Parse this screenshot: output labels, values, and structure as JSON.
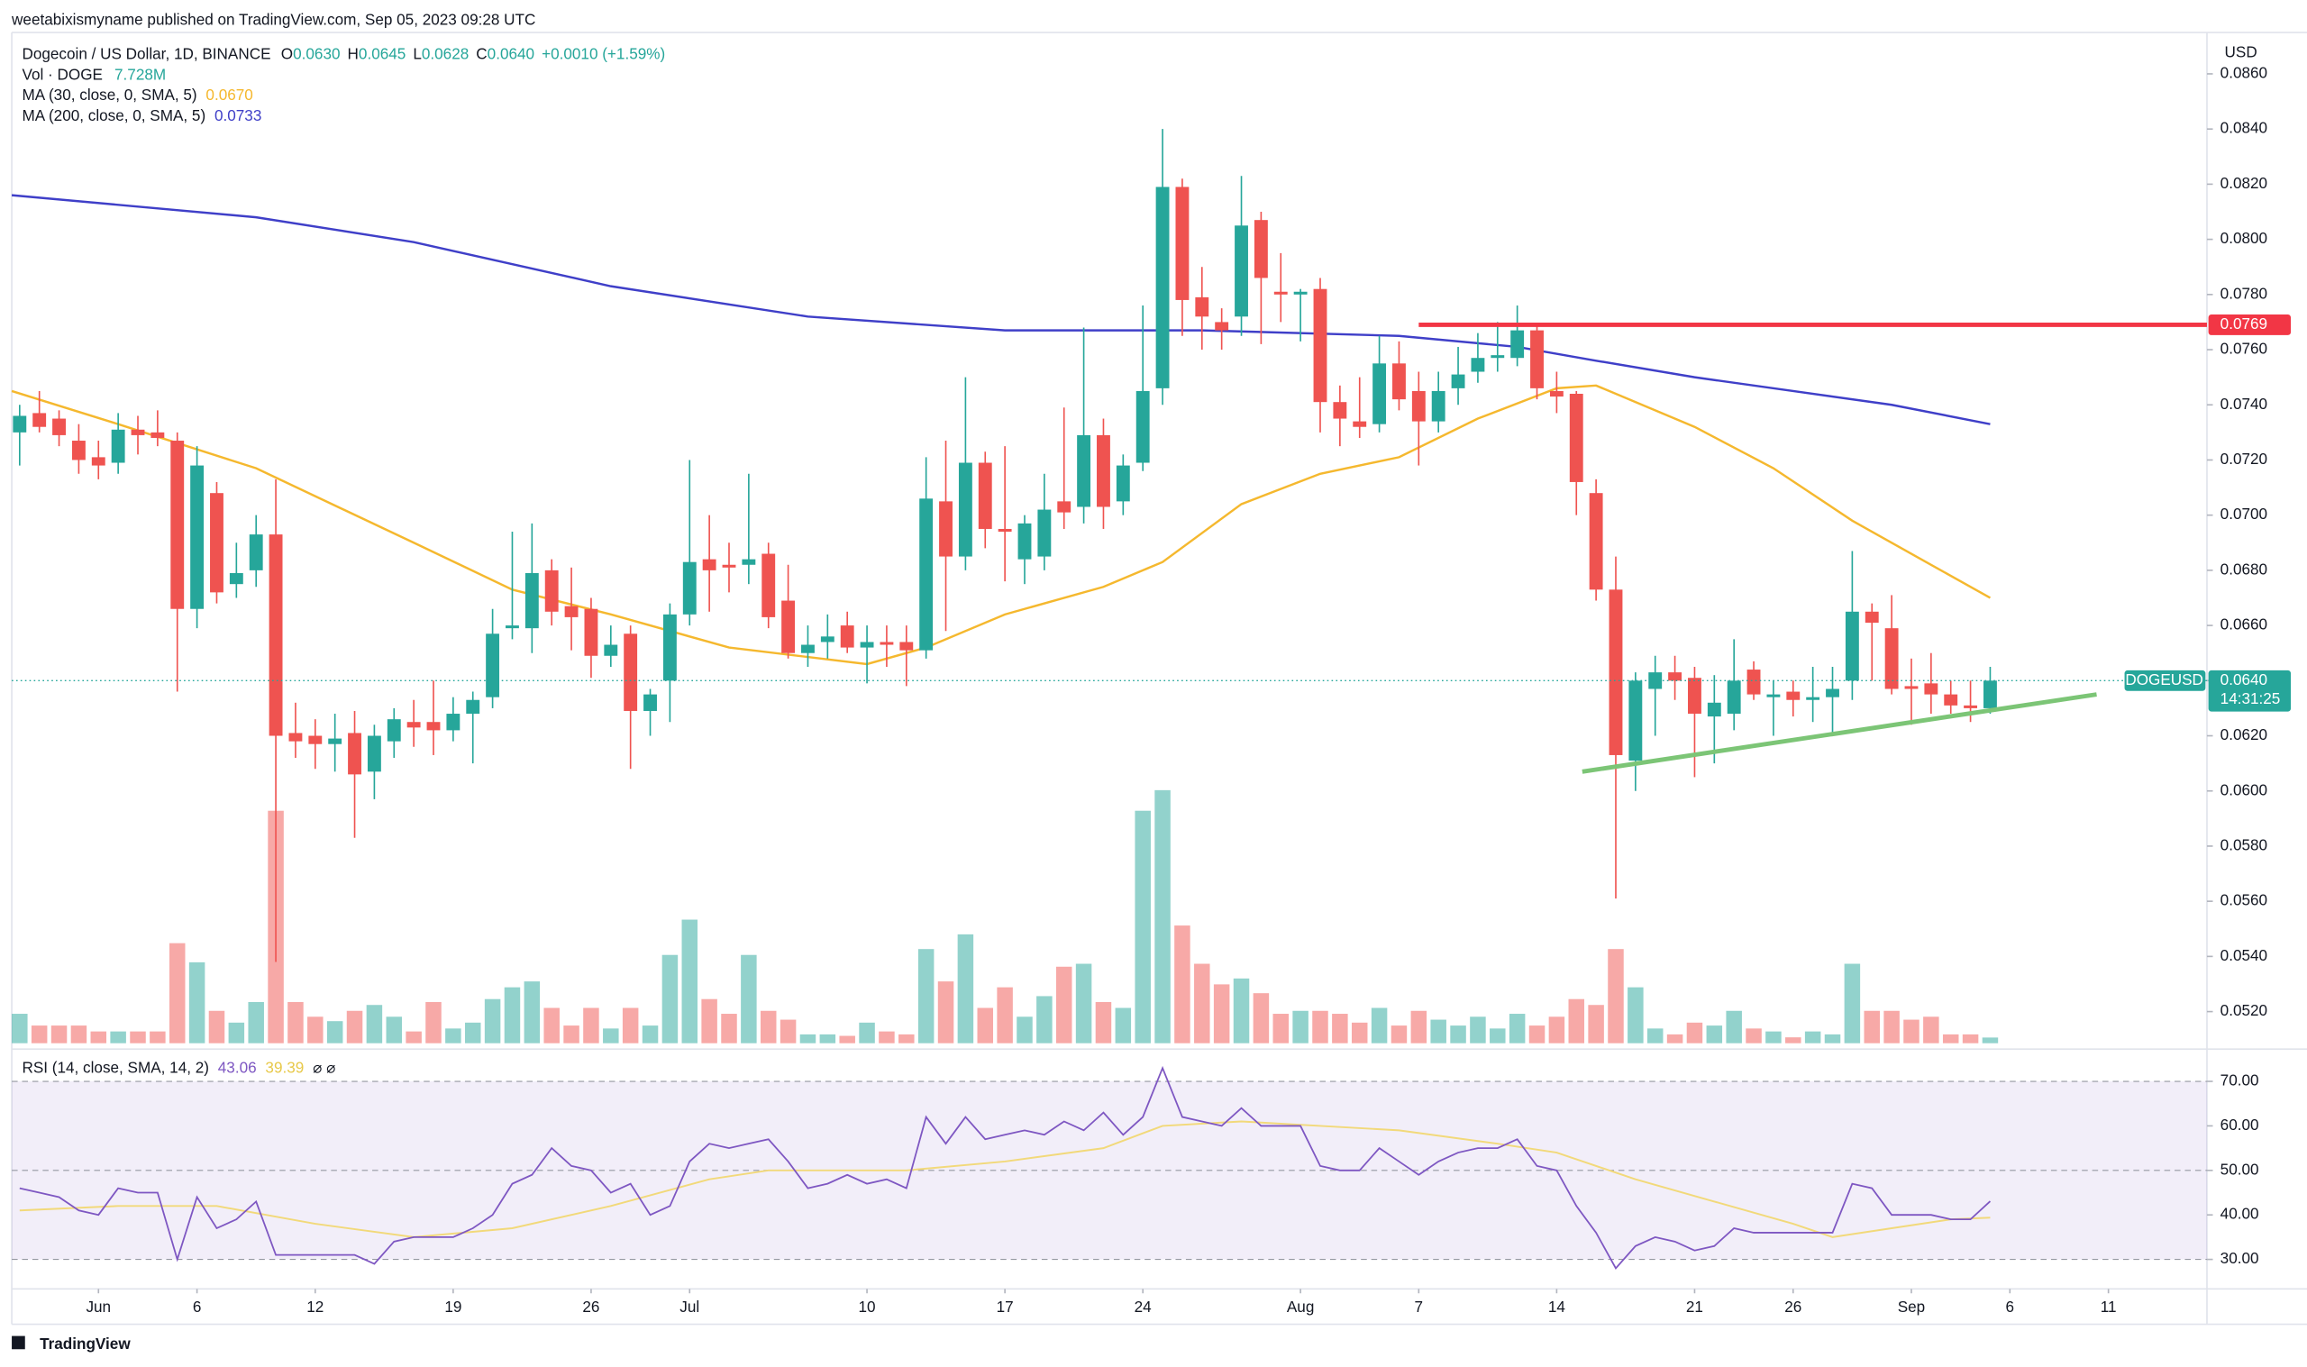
{
  "header": {
    "published": "weetabixismyname published on TradingView.com, Sep 05, 2023 09:28 UTC",
    "symbol": "Dogecoin / US Dollar, 1D, BINANCE",
    "o_label": "O",
    "o": "0.0630",
    "h_label": "H",
    "h": "0.0645",
    "l_label": "L",
    "l": "0.0628",
    "c_label": "C",
    "c": "0.0640",
    "change": "+0.0010 (+1.59%)",
    "vol_label": "Vol · DOGE",
    "vol": "7.728M",
    "ma30": "0.0670",
    "ma200": "0.0733",
    "rsi_label": "RSI (14, close, SMA, 14, 2)",
    "rsi": "43.06",
    "rsi_ma": "39.39",
    "rsi_icons": "⌀ ⌀",
    "brand": "TradingView"
  },
  "chart_data": {
    "type": "candlestick",
    "currency": "USD",
    "up_color": "#26a69a",
    "down_color": "#ef5350",
    "xlim": [
      -0.4,
      111
    ],
    "xticks": [
      {
        "value": 4,
        "label": "Jun"
      },
      {
        "value": 9,
        "label": "6"
      },
      {
        "value": 15,
        "label": "12"
      },
      {
        "value": 22,
        "label": "19"
      },
      {
        "value": 29,
        "label": "26"
      },
      {
        "value": 34,
        "label": "Jul"
      },
      {
        "value": 43,
        "label": "10"
      },
      {
        "value": 50,
        "label": "17"
      },
      {
        "value": 57,
        "label": "24"
      },
      {
        "value": 65,
        "label": "Aug"
      },
      {
        "value": 71,
        "label": "7"
      },
      {
        "value": 78,
        "label": "14"
      },
      {
        "value": 85,
        "label": "21"
      },
      {
        "value": 90,
        "label": "26"
      },
      {
        "value": 96,
        "label": "Sep"
      },
      {
        "value": 101,
        "label": "6"
      },
      {
        "value": 106,
        "label": "11"
      }
    ],
    "ylim": [
      0.0508,
      0.0875
    ],
    "yticks": [
      {
        "value": 0.052,
        "label": "0.0520"
      },
      {
        "value": 0.054,
        "label": "0.0540"
      },
      {
        "value": 0.056,
        "label": "0.0560"
      },
      {
        "value": 0.058,
        "label": "0.0580"
      },
      {
        "value": 0.06,
        "label": "0.0600"
      },
      {
        "value": 0.062,
        "label": "0.0620"
      },
      {
        "value": 0.064,
        "label": "0.0640"
      },
      {
        "value": 0.066,
        "label": "0.0660"
      },
      {
        "value": 0.068,
        "label": "0.0680"
      },
      {
        "value": 0.07,
        "label": "0.0700"
      },
      {
        "value": 0.072,
        "label": "0.0720"
      },
      {
        "value": 0.074,
        "label": "0.0740"
      },
      {
        "value": 0.076,
        "label": "0.0760"
      },
      {
        "value": 0.078,
        "label": "0.0780"
      },
      {
        "value": 0.08,
        "label": "0.0800"
      },
      {
        "value": 0.082,
        "label": "0.0820"
      },
      {
        "value": 0.084,
        "label": "0.0840"
      },
      {
        "value": 0.086,
        "label": "0.0860"
      }
    ],
    "ohlc": [
      [
        0.073,
        0.074,
        0.0718,
        0.0736
      ],
      [
        0.0737,
        0.0745,
        0.073,
        0.0732
      ],
      [
        0.0735,
        0.0738,
        0.0725,
        0.0729
      ],
      [
        0.0727,
        0.0733,
        0.0715,
        0.072
      ],
      [
        0.0721,
        0.0727,
        0.0713,
        0.0718
      ],
      [
        0.0719,
        0.0737,
        0.0715,
        0.0731
      ],
      [
        0.0731,
        0.0736,
        0.0722,
        0.0729
      ],
      [
        0.073,
        0.0738,
        0.0725,
        0.0728
      ],
      [
        0.0727,
        0.073,
        0.0636,
        0.0666
      ],
      [
        0.0666,
        0.0725,
        0.0659,
        0.0718
      ],
      [
        0.0708,
        0.0712,
        0.0668,
        0.0672
      ],
      [
        0.0675,
        0.069,
        0.067,
        0.0679
      ],
      [
        0.068,
        0.07,
        0.0674,
        0.0693
      ],
      [
        0.0693,
        0.0713,
        0.0538,
        0.062
      ],
      [
        0.0621,
        0.0632,
        0.0612,
        0.0618
      ],
      [
        0.062,
        0.0626,
        0.0608,
        0.0617
      ],
      [
        0.0617,
        0.0628,
        0.0607,
        0.0619
      ],
      [
        0.0621,
        0.0629,
        0.0583,
        0.0606
      ],
      [
        0.0607,
        0.0624,
        0.0597,
        0.062
      ],
      [
        0.0618,
        0.063,
        0.0612,
        0.0626
      ],
      [
        0.0625,
        0.0633,
        0.0616,
        0.0623
      ],
      [
        0.0625,
        0.064,
        0.0613,
        0.0622
      ],
      [
        0.0622,
        0.0634,
        0.0618,
        0.0628
      ],
      [
        0.0628,
        0.0636,
        0.061,
        0.0633
      ],
      [
        0.0634,
        0.0666,
        0.063,
        0.0657
      ],
      [
        0.0659,
        0.0694,
        0.0655,
        0.066
      ],
      [
        0.0659,
        0.0697,
        0.065,
        0.0679
      ],
      [
        0.068,
        0.0684,
        0.066,
        0.0665
      ],
      [
        0.0667,
        0.0681,
        0.0651,
        0.0663
      ],
      [
        0.0666,
        0.067,
        0.0641,
        0.0649
      ],
      [
        0.0649,
        0.066,
        0.0645,
        0.0653
      ],
      [
        0.0657,
        0.066,
        0.0608,
        0.0629
      ],
      [
        0.0629,
        0.0637,
        0.062,
        0.0635
      ],
      [
        0.064,
        0.0668,
        0.0625,
        0.0664
      ],
      [
        0.0664,
        0.072,
        0.066,
        0.0683
      ],
      [
        0.0684,
        0.07,
        0.0665,
        0.068
      ],
      [
        0.0682,
        0.069,
        0.0672,
        0.0681
      ],
      [
        0.0682,
        0.0715,
        0.0675,
        0.0684
      ],
      [
        0.0686,
        0.069,
        0.0659,
        0.0663
      ],
      [
        0.0669,
        0.0682,
        0.0648,
        0.065
      ],
      [
        0.065,
        0.066,
        0.0645,
        0.0653
      ],
      [
        0.0654,
        0.0664,
        0.0648,
        0.0656
      ],
      [
        0.066,
        0.0665,
        0.065,
        0.0652
      ],
      [
        0.0652,
        0.066,
        0.0639,
        0.0654
      ],
      [
        0.0654,
        0.066,
        0.0645,
        0.0653
      ],
      [
        0.0654,
        0.066,
        0.0638,
        0.0651
      ],
      [
        0.0651,
        0.0721,
        0.0648,
        0.0706
      ],
      [
        0.0705,
        0.0727,
        0.0658,
        0.0685
      ],
      [
        0.0685,
        0.075,
        0.068,
        0.0719
      ],
      [
        0.0719,
        0.0723,
        0.0688,
        0.0695
      ],
      [
        0.0695,
        0.0725,
        0.0676,
        0.0694
      ],
      [
        0.0684,
        0.07,
        0.0675,
        0.0697
      ],
      [
        0.0685,
        0.0715,
        0.068,
        0.0702
      ],
      [
        0.0705,
        0.0739,
        0.0695,
        0.0701
      ],
      [
        0.0703,
        0.0768,
        0.0697,
        0.0729
      ],
      [
        0.0729,
        0.0735,
        0.0695,
        0.0703
      ],
      [
        0.0705,
        0.0722,
        0.07,
        0.0718
      ],
      [
        0.0719,
        0.0776,
        0.0716,
        0.0745
      ],
      [
        0.0746,
        0.084,
        0.074,
        0.0819
      ],
      [
        0.0819,
        0.0822,
        0.0765,
        0.0778
      ],
      [
        0.0779,
        0.079,
        0.076,
        0.0772
      ],
      [
        0.077,
        0.0775,
        0.076,
        0.0767
      ],
      [
        0.0772,
        0.0823,
        0.0765,
        0.0805
      ],
      [
        0.0807,
        0.081,
        0.0762,
        0.0786
      ],
      [
        0.0781,
        0.0795,
        0.077,
        0.078
      ],
      [
        0.078,
        0.0782,
        0.0763,
        0.0781
      ],
      [
        0.0782,
        0.0786,
        0.073,
        0.0741
      ],
      [
        0.0741,
        0.0747,
        0.0725,
        0.0735
      ],
      [
        0.0734,
        0.075,
        0.0728,
        0.0732
      ],
      [
        0.0733,
        0.0765,
        0.073,
        0.0755
      ],
      [
        0.0755,
        0.0763,
        0.0738,
        0.0742
      ],
      [
        0.0745,
        0.0752,
        0.0718,
        0.0734
      ],
      [
        0.0734,
        0.0752,
        0.073,
        0.0745
      ],
      [
        0.0746,
        0.0761,
        0.074,
        0.0751
      ],
      [
        0.0752,
        0.0766,
        0.0748,
        0.0757
      ],
      [
        0.0757,
        0.077,
        0.0752,
        0.0758
      ],
      [
        0.0757,
        0.0776,
        0.0754,
        0.0767
      ],
      [
        0.0767,
        0.0769,
        0.0742,
        0.0746
      ],
      [
        0.0745,
        0.0752,
        0.0737,
        0.0743
      ],
      [
        0.0744,
        0.0745,
        0.07,
        0.0712
      ],
      [
        0.0708,
        0.0713,
        0.0669,
        0.0673
      ],
      [
        0.0673,
        0.0685,
        0.0561,
        0.0613
      ],
      [
        0.0611,
        0.0643,
        0.06,
        0.064
      ],
      [
        0.0637,
        0.0649,
        0.062,
        0.0643
      ],
      [
        0.0643,
        0.0649,
        0.0633,
        0.064
      ],
      [
        0.0641,
        0.0645,
        0.0605,
        0.0628
      ],
      [
        0.0627,
        0.0642,
        0.061,
        0.0632
      ],
      [
        0.0628,
        0.0655,
        0.0622,
        0.064
      ],
      [
        0.0644,
        0.0647,
        0.0633,
        0.0635
      ],
      [
        0.0634,
        0.064,
        0.062,
        0.0635
      ],
      [
        0.0636,
        0.064,
        0.0627,
        0.0633
      ],
      [
        0.0633,
        0.0645,
        0.0625,
        0.0634
      ],
      [
        0.0634,
        0.0645,
        0.0621,
        0.0637
      ],
      [
        0.064,
        0.0687,
        0.0633,
        0.0665
      ],
      [
        0.0665,
        0.0668,
        0.064,
        0.0661
      ],
      [
        0.0659,
        0.0671,
        0.0635,
        0.0637
      ],
      [
        0.0638,
        0.0648,
        0.0624,
        0.0637
      ],
      [
        0.0639,
        0.065,
        0.0628,
        0.0635
      ],
      [
        0.0635,
        0.064,
        0.0628,
        0.0631
      ],
      [
        0.0631,
        0.064,
        0.0625,
        0.063
      ],
      [
        0.063,
        0.0645,
        0.0628,
        0.064
      ]
    ],
    "volume": [
      40,
      24,
      24,
      24,
      16,
      16,
      16,
      16,
      136,
      110,
      44,
      28,
      56,
      316,
      56,
      36,
      30,
      44,
      52,
      36,
      16,
      56,
      20,
      28,
      60,
      76,
      84,
      48,
      24,
      48,
      20,
      48,
      24,
      120,
      168,
      60,
      40,
      120,
      44,
      32,
      12,
      12,
      10,
      28,
      16,
      12,
      128,
      84,
      148,
      48,
      76,
      36,
      64,
      104,
      108,
      56,
      48,
      316,
      344,
      160,
      108,
      80,
      88,
      68,
      40,
      44,
      44,
      40,
      28,
      48,
      24,
      44,
      32,
      24,
      36,
      20,
      40,
      24,
      36,
      60,
      52,
      128,
      76,
      20,
      12,
      28,
      24,
      44,
      20,
      16,
      8,
      16,
      12,
      108,
      44,
      44,
      32,
      36,
      12,
      12,
      7.728
    ],
    "series": [
      {
        "name": "MA (30, close, 0, SMA, 5)",
        "color": "#f5b82e",
        "x": [
          -0.4,
          5,
          12,
          20,
          25,
          30,
          36,
          43,
          46,
          50,
          55,
          58,
          62,
          66,
          70,
          74,
          78,
          80,
          85,
          89,
          93,
          97,
          100
        ],
        "values": [
          0.0745,
          0.0733,
          0.0717,
          0.069,
          0.0673,
          0.0664,
          0.0652,
          0.0646,
          0.0652,
          0.0664,
          0.0674,
          0.0683,
          0.0704,
          0.0715,
          0.0721,
          0.0735,
          0.0746,
          0.0747,
          0.0732,
          0.0717,
          0.0698,
          0.0682,
          0.067
        ]
      },
      {
        "name": "MA (200, close, 0, SMA, 5)",
        "color": "#3f3fc8",
        "x": [
          -0.4,
          12,
          20,
          30,
          40,
          50,
          60,
          70,
          76,
          80,
          85,
          90,
          95,
          100
        ],
        "values": [
          0.0816,
          0.0808,
          0.0799,
          0.0783,
          0.0772,
          0.0767,
          0.0767,
          0.0765,
          0.0761,
          0.0756,
          0.075,
          0.0745,
          0.074,
          0.0733
        ]
      }
    ],
    "level": {
      "value": 0.0769,
      "label": "0.0769",
      "x_start": 71,
      "color": "#f23645"
    },
    "trendline": {
      "x": [
        79.3,
        105.4
      ],
      "values": [
        0.0607,
        0.0635
      ],
      "color": "#7cc576"
    },
    "last_price": {
      "value": 0.064,
      "symbol": "DOGEUSD",
      "label": "0.0640",
      "countdown": "14:31:25"
    },
    "rsi": {
      "color": "#7e57c2",
      "ylim": [
        23.7,
        75.6
      ],
      "yticks": [
        {
          "value": 30,
          "label": "30.00"
        },
        {
          "value": 40,
          "label": "40.00"
        },
        {
          "value": 50,
          "label": "50.00"
        },
        {
          "value": 60,
          "label": "60.00"
        },
        {
          "value": 70,
          "label": "70.00"
        }
      ],
      "values": [
        46,
        45,
        44,
        41,
        40,
        46,
        45,
        45,
        30,
        44,
        37,
        39,
        43,
        31,
        31,
        31,
        31,
        31,
        29,
        34,
        35,
        35,
        35,
        37,
        40,
        47,
        49,
        55,
        51,
        50,
        45,
        47,
        40,
        42,
        52,
        56,
        55,
        56,
        57,
        52,
        46,
        47,
        49,
        47,
        48,
        46,
        62,
        56,
        62,
        57,
        58,
        59,
        58,
        61,
        59,
        63,
        58,
        62,
        73,
        62,
        61,
        60,
        64,
        60,
        60,
        60,
        51,
        50,
        50,
        55,
        52,
        49,
        52,
        54,
        55,
        55,
        57,
        51,
        50,
        42,
        36,
        28,
        33,
        35,
        34,
        32,
        33,
        37,
        36,
        36,
        36,
        36,
        36,
        47,
        46,
        40,
        40,
        40,
        39,
        39,
        43.06
      ],
      "ma": {
        "color": "#f2d97a",
        "x": [
          0,
          5,
          10,
          15,
          20,
          25,
          30,
          35,
          38,
          45,
          50,
          55,
          58,
          62,
          66,
          70,
          75,
          78,
          82,
          86,
          90,
          92,
          95,
          98,
          100
        ],
        "values": [
          41,
          42,
          42,
          38,
          35,
          37,
          42,
          48,
          50,
          50,
          52,
          55,
          60,
          61,
          60,
          59,
          56,
          54,
          48,
          43,
          38,
          35,
          37,
          39,
          39.39
        ]
      }
    }
  }
}
